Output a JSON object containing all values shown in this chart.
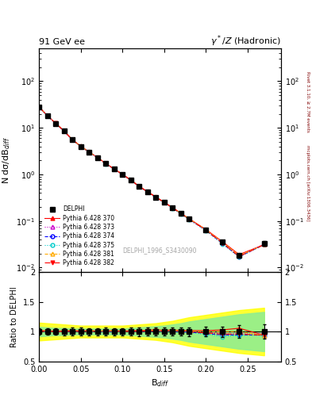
{
  "title_left": "91 GeV ee",
  "title_right": "γ*/Z (Hadronic)",
  "ylabel_main": "N dσ/dB$_{diff}$",
  "ylabel_ratio": "Ratio to DELPHI",
  "xlabel": "B$_{diff}$",
  "watermark": "DELPHI_1996_S3430090",
  "right_label": "Rivet 3.1.10, ≥ 2.7M events",
  "right_label2": "mcplots.cern.ch [arXiv:1306.3436]",
  "x_data": [
    0.0,
    0.01,
    0.02,
    0.03,
    0.04,
    0.05,
    0.06,
    0.07,
    0.08,
    0.09,
    0.1,
    0.11,
    0.12,
    0.13,
    0.14,
    0.15,
    0.16,
    0.17,
    0.18,
    0.2,
    0.22,
    0.24,
    0.27
  ],
  "delphi_y": [
    28.0,
    18.0,
    12.5,
    8.5,
    5.5,
    4.0,
    3.0,
    2.3,
    1.7,
    1.3,
    1.0,
    0.75,
    0.55,
    0.42,
    0.32,
    0.25,
    0.19,
    0.145,
    0.11,
    0.065,
    0.035,
    0.018,
    0.033
  ],
  "delphi_yerr": [
    1.5,
    1.0,
    0.7,
    0.5,
    0.35,
    0.25,
    0.18,
    0.14,
    0.11,
    0.08,
    0.06,
    0.05,
    0.04,
    0.03,
    0.022,
    0.017,
    0.013,
    0.01,
    0.008,
    0.005,
    0.003,
    0.002,
    0.004
  ],
  "pythia_370_y": [
    28.5,
    18.2,
    12.6,
    8.6,
    5.6,
    4.05,
    3.05,
    2.32,
    1.72,
    1.32,
    1.01,
    0.76,
    0.56,
    0.43,
    0.33,
    0.255,
    0.195,
    0.148,
    0.112,
    0.066,
    0.036,
    0.019,
    0.031
  ],
  "pythia_373_y": [
    28.3,
    18.1,
    12.55,
    8.55,
    5.55,
    4.02,
    3.02,
    2.31,
    1.71,
    1.31,
    1.005,
    0.755,
    0.555,
    0.425,
    0.325,
    0.252,
    0.192,
    0.146,
    0.11,
    0.064,
    0.034,
    0.0175,
    0.032
  ],
  "pythia_374_y": [
    28.2,
    18.0,
    12.5,
    8.5,
    5.52,
    4.01,
    3.01,
    2.3,
    1.7,
    1.3,
    1.002,
    0.752,
    0.552,
    0.422,
    0.322,
    0.25,
    0.19,
    0.145,
    0.109,
    0.063,
    0.033,
    0.017,
    0.031
  ],
  "pythia_375_y": [
    28.1,
    17.9,
    12.45,
    8.48,
    5.5,
    4.0,
    3.0,
    2.29,
    1.69,
    1.29,
    1.0,
    0.75,
    0.55,
    0.42,
    0.32,
    0.248,
    0.188,
    0.143,
    0.108,
    0.062,
    0.032,
    0.0168,
    0.031
  ],
  "pythia_381_y": [
    28.4,
    18.15,
    12.58,
    8.58,
    5.58,
    4.03,
    3.03,
    2.315,
    1.715,
    1.315,
    1.007,
    0.757,
    0.557,
    0.427,
    0.327,
    0.253,
    0.193,
    0.147,
    0.111,
    0.065,
    0.035,
    0.018,
    0.031
  ],
  "pythia_382_y": [
    28.2,
    18.05,
    12.52,
    8.52,
    5.53,
    4.01,
    3.01,
    2.305,
    1.705,
    1.305,
    1.003,
    0.753,
    0.553,
    0.423,
    0.323,
    0.251,
    0.191,
    0.1455,
    0.1095,
    0.0635,
    0.0335,
    0.01725,
    0.031
  ],
  "band_yellow_lo": [
    0.85,
    0.86,
    0.87,
    0.88,
    0.89,
    0.9,
    0.9,
    0.9,
    0.9,
    0.9,
    0.9,
    0.89,
    0.88,
    0.87,
    0.86,
    0.84,
    0.82,
    0.79,
    0.76,
    0.72,
    0.68,
    0.64,
    0.6
  ],
  "band_yellow_hi": [
    1.15,
    1.14,
    1.13,
    1.12,
    1.11,
    1.1,
    1.1,
    1.1,
    1.1,
    1.1,
    1.1,
    1.11,
    1.12,
    1.13,
    1.14,
    1.16,
    1.18,
    1.21,
    1.24,
    1.28,
    1.32,
    1.36,
    1.4
  ],
  "band_green_lo": [
    0.92,
    0.93,
    0.94,
    0.94,
    0.95,
    0.95,
    0.95,
    0.95,
    0.95,
    0.95,
    0.95,
    0.94,
    0.93,
    0.92,
    0.91,
    0.9,
    0.88,
    0.86,
    0.83,
    0.79,
    0.75,
    0.71,
    0.67
  ],
  "band_green_hi": [
    1.08,
    1.07,
    1.06,
    1.06,
    1.05,
    1.05,
    1.05,
    1.05,
    1.05,
    1.05,
    1.05,
    1.06,
    1.07,
    1.08,
    1.09,
    1.1,
    1.12,
    1.14,
    1.17,
    1.21,
    1.25,
    1.29,
    1.33
  ],
  "colors": {
    "delphi": "#000000",
    "p370": "#ff0000",
    "p373": "#cc00cc",
    "p374": "#0000ff",
    "p375": "#00cccc",
    "p381": "#ffaa00",
    "p382": "#ff0000"
  },
  "ylim_main": [
    0.008,
    500
  ],
  "ylim_ratio": [
    0.5,
    2.0
  ],
  "xlim": [
    0.0,
    0.29
  ]
}
